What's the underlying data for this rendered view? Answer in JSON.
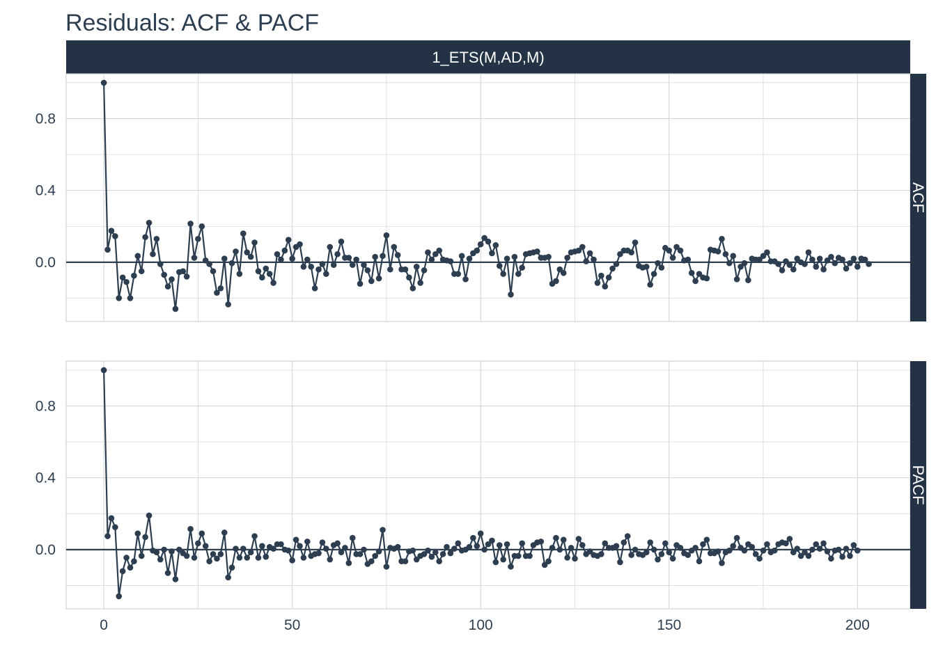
{
  "title": "Residuals: ACF & PACF",
  "facet_label": "1_ETS(M,AD,M)",
  "colors": {
    "series": "#2c3e50",
    "strip": "#233345",
    "grid": "#cfd3d8",
    "zero_line": "#2c3e50"
  },
  "chart_data": [
    {
      "type": "line",
      "panel": "ACF",
      "strip_label": "ACF",
      "xlim": [
        -10,
        214
      ],
      "ylim": [
        -0.33,
        1.05
      ],
      "x_ticks": [
        0,
        50,
        100,
        150,
        200
      ],
      "y_ticks": [
        0.0,
        0.4,
        0.8
      ],
      "y_tick_labels": [
        "0.0",
        "0.4",
        "0.8"
      ],
      "x": "lags 0..203",
      "values": [
        1.0,
        0.07,
        0.175,
        0.145,
        -0.2,
        -0.085,
        -0.11,
        -0.2,
        -0.075,
        0.035,
        -0.05,
        0.14,
        0.22,
        0.045,
        0.13,
        -0.01,
        -0.07,
        -0.135,
        -0.095,
        -0.26,
        -0.055,
        -0.05,
        -0.08,
        0.215,
        0.025,
        0.13,
        0.2,
        0.01,
        -0.01,
        -0.05,
        -0.17,
        -0.145,
        0.02,
        -0.235,
        -0.005,
        0.06,
        -0.065,
        0.16,
        0.055,
        0.03,
        0.11,
        -0.05,
        -0.085,
        -0.035,
        -0.065,
        -0.115,
        0.045,
        0.015,
        0.065,
        0.125,
        0.02,
        0.085,
        0.1,
        -0.025,
        0.015,
        -0.025,
        -0.145,
        -0.04,
        -0.01,
        -0.065,
        0.085,
        -0.015,
        0.045,
        0.115,
        0.025,
        0.025,
        -0.015,
        0.015,
        -0.12,
        -0.015,
        -0.045,
        -0.105,
        0.03,
        -0.09,
        0.035,
        0.15,
        -0.04,
        0.085,
        0.04,
        -0.04,
        -0.04,
        -0.085,
        -0.145,
        -0.025,
        -0.115,
        -0.045,
        0.055,
        0.015,
        0.045,
        0.065,
        0.015,
        0.01,
        0.005,
        -0.065,
        -0.065,
        0.035,
        -0.095,
        0.02,
        0.05,
        0.065,
        0.1,
        0.135,
        0.115,
        0.05,
        0.095,
        -0.02,
        -0.065,
        0.02,
        -0.18,
        0.03,
        -0.065,
        -0.03,
        0.045,
        0.05,
        0.055,
        0.06,
        0.025,
        0.025,
        0.03,
        -0.12,
        -0.105,
        -0.04,
        -0.06,
        0.025,
        0.055,
        0.06,
        0.065,
        0.085,
        0.005,
        0.05,
        0.015,
        -0.115,
        -0.075,
        -0.135,
        -0.085,
        -0.035,
        -0.01,
        0.045,
        0.065,
        0.065,
        0.055,
        0.11,
        -0.02,
        -0.03,
        -0.025,
        -0.125,
        -0.065,
        -0.005,
        -0.03,
        0.08,
        0.065,
        0.025,
        0.085,
        0.065,
        0.01,
        0.015,
        -0.06,
        -0.105,
        -0.065,
        -0.085,
        -0.09,
        0.07,
        0.065,
        0.06,
        0.13,
        0.045,
        -0.005,
        0.035,
        -0.095,
        -0.025,
        -0.005,
        -0.1,
        0.02,
        0.015,
        0.015,
        0.035,
        0.055,
        0.005,
        0.005,
        -0.01,
        -0.045,
        0.005,
        -0.015,
        -0.04,
        0.02,
        0.0,
        -0.01,
        0.055,
        0.015,
        -0.025,
        0.02,
        -0.04,
        0.01,
        0.03,
        -0.005,
        0.025,
        0.015,
        -0.035,
        -0.005,
        0.02,
        -0.025,
        0.02,
        0.015,
        -0.01
      ]
    },
    {
      "type": "line",
      "panel": "PACF",
      "strip_label": "PACF",
      "xlim": [
        -10,
        214
      ],
      "ylim": [
        -0.33,
        1.05
      ],
      "x_ticks": [
        0,
        50,
        100,
        150,
        200
      ],
      "x_tick_labels": [
        "0",
        "50",
        "100",
        "150",
        "200"
      ],
      "y_ticks": [
        0.0,
        0.4,
        0.8
      ],
      "y_tick_labels": [
        "0.0",
        "0.4",
        "0.8"
      ],
      "x": "lags 0..203",
      "values": [
        1.0,
        0.075,
        0.175,
        0.125,
        -0.26,
        -0.12,
        -0.045,
        -0.1,
        -0.065,
        0.09,
        -0.035,
        0.07,
        0.19,
        -0.005,
        -0.015,
        -0.055,
        0.0,
        -0.13,
        -0.01,
        -0.165,
        0.0,
        -0.02,
        -0.035,
        0.115,
        -0.045,
        0.035,
        0.09,
        0.02,
        -0.065,
        -0.025,
        -0.05,
        -0.025,
        0.095,
        -0.155,
        -0.1,
        0.005,
        -0.045,
        0.005,
        -0.045,
        -0.015,
        0.075,
        -0.045,
        0.02,
        -0.04,
        0.015,
        0.005,
        0.03,
        0.03,
        0.0,
        -0.005,
        -0.06,
        0.055,
        0.02,
        -0.045,
        0.045,
        -0.035,
        -0.025,
        -0.02,
        0.04,
        0.005,
        -0.055,
        0.025,
        0.035,
        -0.015,
        0.01,
        -0.075,
        0.065,
        -0.025,
        -0.025,
        0.0,
        -0.08,
        -0.065,
        -0.035,
        -0.01,
        0.11,
        -0.095,
        0.01,
        0.005,
        0.015,
        -0.065,
        -0.065,
        -0.01,
        -0.005,
        -0.055,
        -0.035,
        -0.025,
        -0.005,
        -0.04,
        -0.015,
        -0.065,
        -0.025,
        0.015,
        -0.02,
        0.005,
        0.035,
        -0.005,
        0.0,
        0.015,
        0.065,
        0.02,
        0.09,
        0.0,
        0.03,
        0.05,
        -0.07,
        0.025,
        -0.055,
        0.03,
        -0.095,
        -0.035,
        -0.035,
        0.035,
        -0.035,
        -0.035,
        0.025,
        0.04,
        0.045,
        -0.085,
        -0.065,
        0.01,
        0.065,
        0.0,
        0.055,
        -0.045,
        0.01,
        -0.05,
        0.06,
        0.025,
        -0.025,
        -0.01,
        -0.03,
        -0.035,
        -0.025,
        0.035,
        0.01,
        0.01,
        0.02,
        -0.07,
        0.04,
        0.075,
        -0.03,
        0.0,
        -0.025,
        -0.03,
        -0.015,
        0.04,
        0.0,
        -0.055,
        -0.025,
        0.035,
        -0.015,
        -0.05,
        0.025,
        0.01,
        -0.02,
        -0.03,
        -0.005,
        0.01,
        -0.065,
        0.03,
        0.055,
        -0.02,
        -0.02,
        -0.01,
        -0.075,
        -0.015,
        -0.005,
        0.02,
        0.065,
        0.01,
        -0.005,
        0.03,
        0.015,
        -0.025,
        -0.05,
        -0.005,
        0.03,
        -0.015,
        -0.005,
        0.03,
        0.04,
        0.035,
        0.06,
        -0.015,
        0.005,
        -0.035,
        -0.015,
        -0.035,
        0.0,
        0.03,
        0.005,
        0.035,
        -0.01,
        -0.05,
        -0.005,
        0.0,
        -0.04,
        0.005,
        -0.035,
        0.025,
        -0.005
      ]
    }
  ]
}
